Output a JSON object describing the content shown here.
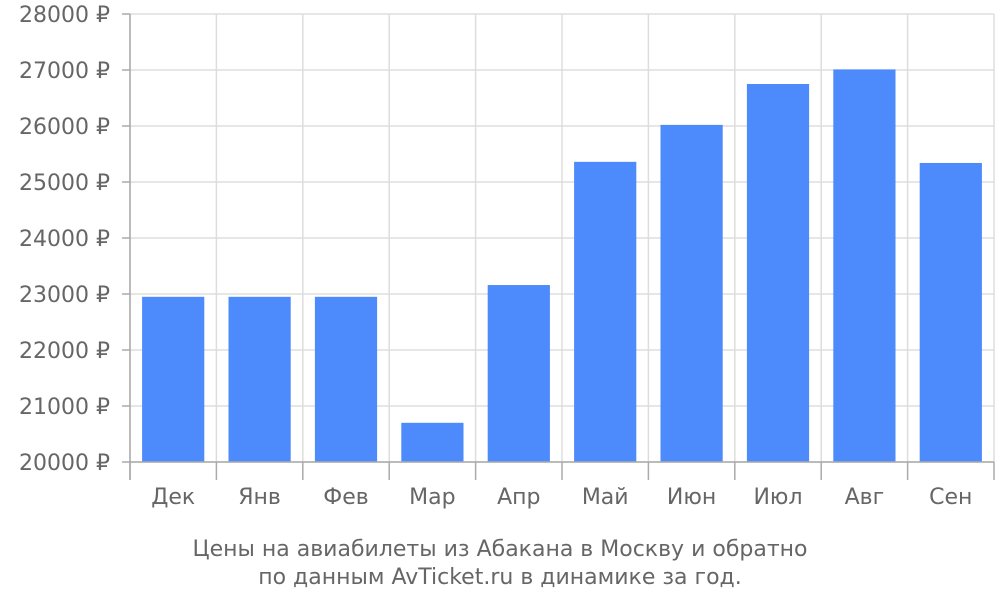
{
  "chart_data": {
    "type": "bar",
    "categories": [
      "Дек",
      "Янв",
      "Фев",
      "Мар",
      "Апр",
      "Май",
      "Июн",
      "Июл",
      "Авг",
      "Сен"
    ],
    "values": [
      22950,
      22950,
      22950,
      20700,
      23160,
      25360,
      26020,
      26750,
      27010,
      25340
    ],
    "ylim": [
      20000,
      28000
    ],
    "yticks": [
      20000,
      21000,
      22000,
      23000,
      24000,
      25000,
      26000,
      27000,
      28000
    ],
    "ytick_labels": [
      "20000 ₽",
      "21000 ₽",
      "22000 ₽",
      "23000 ₽",
      "24000 ₽",
      "25000 ₽",
      "26000 ₽",
      "27000 ₽",
      "28000 ₽"
    ],
    "bar_color": "#4d8afc",
    "grid": true,
    "caption_lines": [
      "Цены на авиабилеты из Абакана в Москву и обратно",
      "по данным AvTicket.ru в динамике за год."
    ]
  }
}
